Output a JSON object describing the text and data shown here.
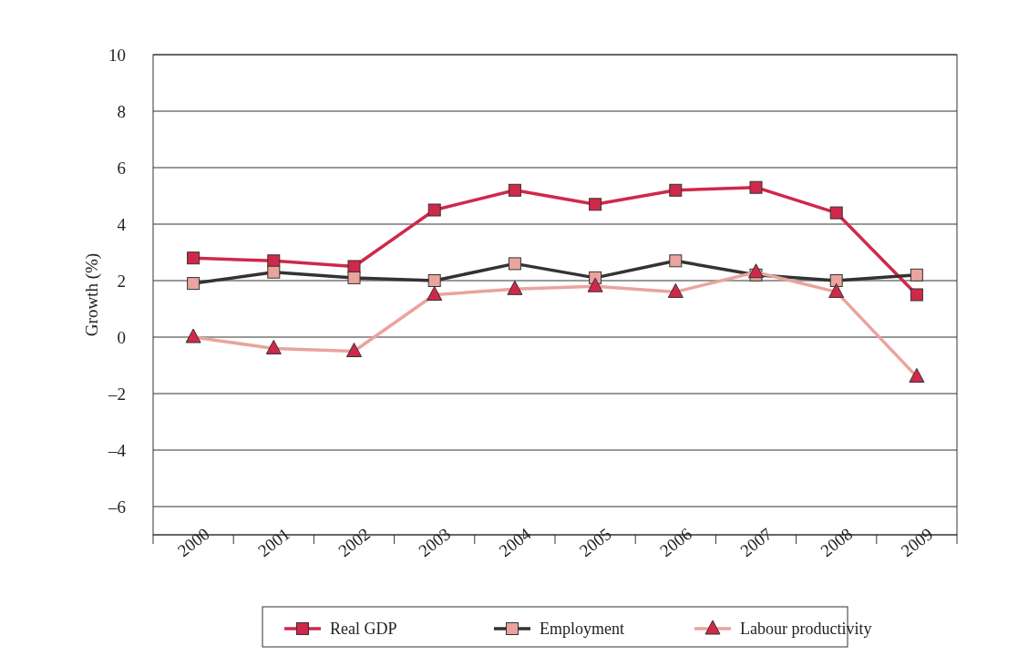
{
  "chart_data": {
    "type": "line",
    "ylabel": "Growth (%)",
    "categories": [
      "2000",
      "2001",
      "2002",
      "2003",
      "2004",
      "2005",
      "2006",
      "2007",
      "2008",
      "2009"
    ],
    "series": [
      {
        "name": "Real GDP",
        "color": "#d0284a",
        "marker": "square",
        "values": [
          2.8,
          2.7,
          2.5,
          4.5,
          5.2,
          4.7,
          5.2,
          5.3,
          4.4,
          1.5
        ]
      },
      {
        "name": "Employment",
        "color": "#333333",
        "marker": "square",
        "values": [
          1.9,
          2.3,
          2.1,
          2.0,
          2.6,
          2.1,
          2.7,
          2.2,
          2.0,
          2.2
        ]
      },
      {
        "name": "Labour productivity",
        "color": "#eba39d",
        "marker": "triangle",
        "values": [
          0,
          -0.4,
          -0.5,
          1.5,
          1.7,
          1.8,
          1.6,
          2.3,
          1.6,
          -1.4
        ]
      }
    ],
    "ylim": [
      -7,
      10
    ],
    "yticks": [
      {
        "value": -6,
        "label": "–6"
      },
      {
        "value": -4,
        "label": "–4"
      },
      {
        "value": -2,
        "label": "–2"
      },
      0,
      2,
      4,
      6,
      8,
      10
    ],
    "grid": "y",
    "legend": "bottom"
  }
}
